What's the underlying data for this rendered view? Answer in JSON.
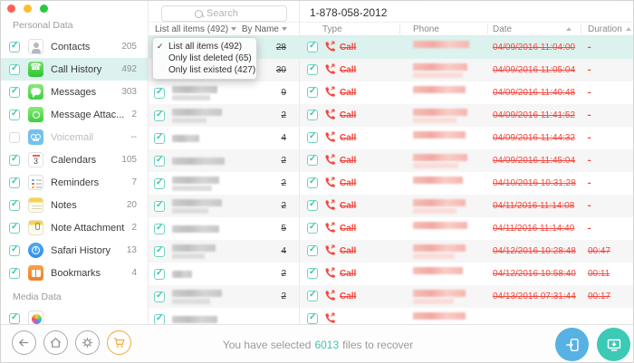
{
  "window": {
    "traffic_lights": [
      {
        "name": "close",
        "color": "#ff5f57"
      },
      {
        "name": "minimize",
        "color": "#febc2e"
      },
      {
        "name": "zoom",
        "color": "#28c840"
      }
    ]
  },
  "sidebar": {
    "sections": [
      {
        "label": "Personal Data",
        "items": [
          {
            "label": "Contacts",
            "count": "205",
            "icon": "contacts",
            "checked": true
          },
          {
            "label": "Call History",
            "count": "492",
            "icon": "call-history",
            "checked": true,
            "selected": true
          },
          {
            "label": "Messages",
            "count": "303",
            "icon": "messages",
            "checked": true
          },
          {
            "label": "Message Attac...",
            "count": "2",
            "icon": "message-attachment",
            "checked": true
          },
          {
            "label": "Voicemail",
            "count": "--",
            "icon": "voicemail",
            "checked": false,
            "disabled": true
          },
          {
            "label": "Calendars",
            "count": "105",
            "icon": "calendars",
            "checked": true
          },
          {
            "label": "Reminders",
            "count": "7",
            "icon": "reminders",
            "checked": true
          },
          {
            "label": "Notes",
            "count": "20",
            "icon": "notes",
            "checked": true
          },
          {
            "label": "Note Attachment",
            "count": "2",
            "icon": "note-attachment",
            "checked": true
          },
          {
            "label": "Safari History",
            "count": "13",
            "icon": "safari-history",
            "checked": true
          },
          {
            "label": "Bookmarks",
            "count": "4",
            "icon": "bookmarks",
            "checked": true
          }
        ]
      },
      {
        "label": "Media Data",
        "items": [
          {
            "label": "",
            "count": "",
            "icon": "photos",
            "checked": true
          }
        ]
      }
    ]
  },
  "midpane": {
    "search": {
      "placeholder": "Search"
    },
    "filter": {
      "label": "List all items (492)"
    },
    "sort": {
      "label": "By Name"
    },
    "dropdown": {
      "items": [
        {
          "label": "List all items (492)",
          "checked": true
        },
        {
          "label": "Only list deleted (65)",
          "checked": false
        },
        {
          "label": "Only list existed (427)",
          "checked": false
        }
      ]
    },
    "rows": [
      {
        "count": "28",
        "selected": true,
        "blur": [
          55,
          0
        ]
      },
      {
        "count": "30",
        "blur": [
          62,
          40
        ]
      },
      {
        "count": "9",
        "blur": [
          50,
          42
        ]
      },
      {
        "count": "2",
        "blur": [
          55,
          38
        ]
      },
      {
        "count": "4",
        "blur": [
          30,
          0
        ]
      },
      {
        "count": "2",
        "blur": [
          58,
          0
        ]
      },
      {
        "count": "2",
        "blur": [
          52,
          44
        ]
      },
      {
        "count": "2",
        "blur": [
          55,
          40
        ]
      },
      {
        "count": "5",
        "blur": [
          52,
          0
        ]
      },
      {
        "count": "4",
        "blur": [
          48,
          36
        ]
      },
      {
        "count": "2",
        "blur": [
          22,
          0
        ]
      },
      {
        "count": "2",
        "blur": [
          55,
          42
        ]
      },
      {
        "count": "",
        "blur": [
          50,
          0
        ]
      }
    ]
  },
  "table": {
    "title": "1-878-058-2012",
    "columns": [
      "Type",
      "Phone",
      "Date",
      "Duration"
    ],
    "rows": [
      {
        "type": "Call",
        "date": "04/09/2016 11:04:00",
        "duration": "-",
        "selected": true,
        "blur": [
          62,
          0
        ]
      },
      {
        "type": "Call",
        "date": "04/09/2016 11:05:04",
        "duration": "-",
        "blur": [
          60,
          55
        ]
      },
      {
        "type": "Call",
        "date": "04/09/2016 11:40:48",
        "duration": "-",
        "blur": [
          58,
          0
        ]
      },
      {
        "type": "Call",
        "date": "04/09/2016 11:41:52",
        "duration": "-",
        "blur": [
          60,
          48
        ]
      },
      {
        "type": "Call",
        "date": "04/09/2016 11:44:32",
        "duration": "-",
        "blur": [
          58,
          0
        ]
      },
      {
        "type": "Call",
        "date": "04/09/2016 11:45:04",
        "duration": "-",
        "blur": [
          60,
          50
        ]
      },
      {
        "type": "Call",
        "date": "04/10/2016 10:31:28",
        "duration": "-",
        "blur": [
          55,
          0
        ]
      },
      {
        "type": "Call",
        "date": "04/11/2016 11:14:08",
        "duration": "-",
        "blur": [
          58,
          48
        ]
      },
      {
        "type": "Call",
        "date": "04/11/2016 11:14:40",
        "duration": "-",
        "blur": [
          60,
          0
        ]
      },
      {
        "type": "Call",
        "date": "04/12/2016 10:28:48",
        "duration": "00:47",
        "blur": [
          58,
          46
        ]
      },
      {
        "type": "Call",
        "date": "04/12/2016 10:58:40",
        "duration": "00:11",
        "blur": [
          55,
          0
        ]
      },
      {
        "type": "Call",
        "date": "04/13/2016 07:31:44",
        "duration": "00:17",
        "blur": [
          58,
          45
        ]
      },
      {
        "type": "",
        "date": "",
        "duration": "",
        "blur": [
          58,
          0
        ]
      }
    ]
  },
  "footer": {
    "nav": [
      {
        "name": "back"
      },
      {
        "name": "home"
      },
      {
        "name": "settings"
      },
      {
        "name": "store"
      }
    ],
    "message": {
      "prefix": "You have selected",
      "count": "6013",
      "suffix": "files to recover"
    },
    "actions": [
      {
        "name": "recover-to-device",
        "color": "#57b1e3"
      },
      {
        "name": "recover-to-computer",
        "color": "#3cc9b5"
      }
    ]
  },
  "colors": {
    "accent_teal": "#3fc3ae",
    "deleted_red": "#f4483e",
    "selection_bg": "#dcf2ef",
    "cart_orange": "#f2ab42"
  }
}
